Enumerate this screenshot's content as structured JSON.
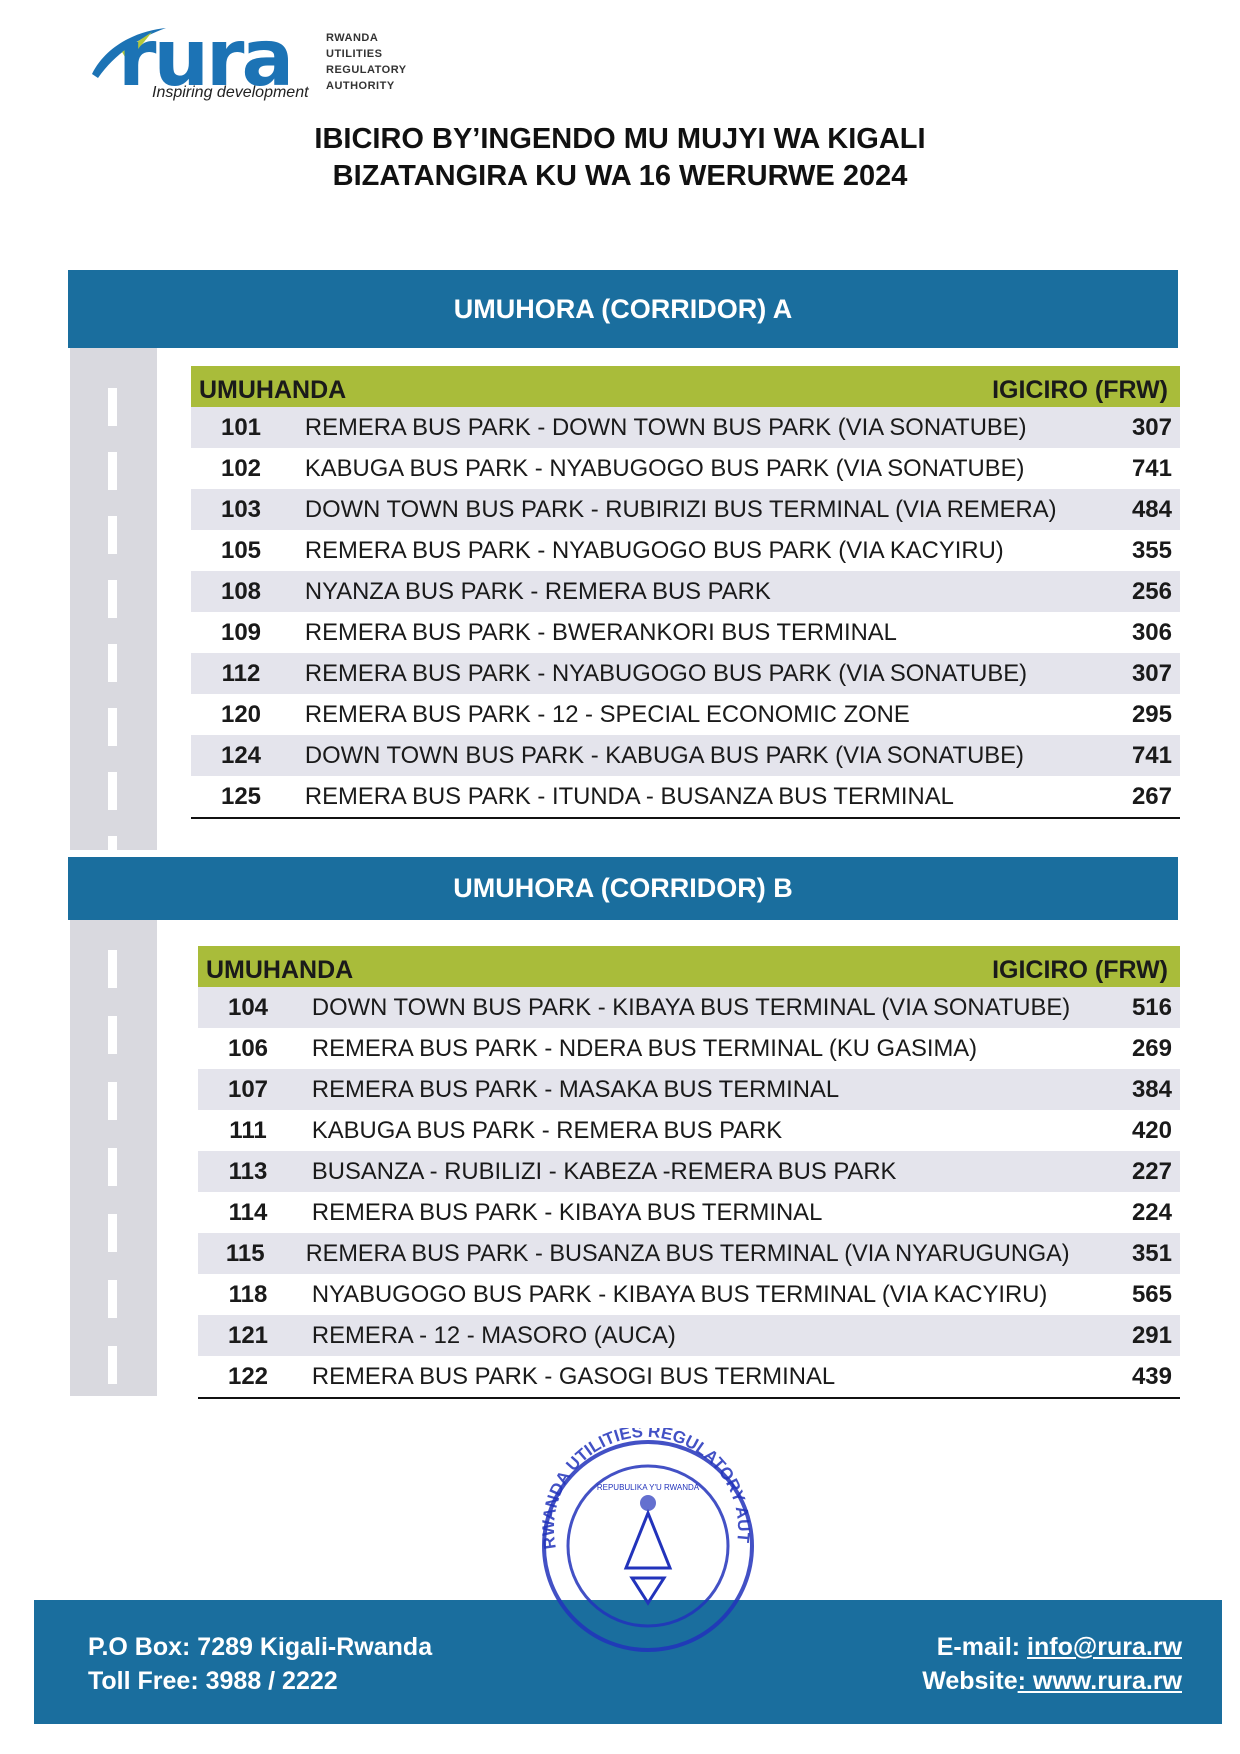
{
  "header": {
    "logo_text": "rura",
    "logo_tagline": "Inspiring development",
    "authority_lines": [
      "RWANDA",
      "UTILITIES",
      "REGULATORY",
      "AUTHORITY"
    ],
    "title_line1": "IBICIRO BY’INGENDO MU MUJYI WA KIGALI",
    "title_line2": "BIZATANGIRA KU WA 16 WERURWE 2024"
  },
  "colors": {
    "band": "#1a6e9e",
    "header_green": "#a9bc3a",
    "row_shade": "#e4e4ec",
    "road": "#d9d9df"
  },
  "corridors": [
    {
      "title": "UMUHORA (CORRIDOR) A",
      "col_route": "UMUHANDA",
      "col_price": "IGICIRO (FRW)",
      "rows": [
        {
          "num": "101",
          "route": "REMERA BUS PARK - DOWN TOWN BUS PARK (VIA SONATUBE)",
          "price": "307"
        },
        {
          "num": "102",
          "route": "KABUGA BUS PARK - NYABUGOGO BUS PARK (VIA SONATUBE)",
          "price": "741"
        },
        {
          "num": "103",
          "route": "DOWN TOWN BUS PARK - RUBIRIZI BUS TERMINAL (VIA REMERA)",
          "price": "484"
        },
        {
          "num": "105",
          "route": "REMERA BUS PARK - NYABUGOGO BUS PARK (VIA KACYIRU)",
          "price": "355"
        },
        {
          "num": "108",
          "route": "NYANZA BUS PARK - REMERA BUS PARK",
          "price": "256"
        },
        {
          "num": "109",
          "route": "REMERA BUS PARK - BWERANKORI BUS TERMINAL",
          "price": "306"
        },
        {
          "num": "112",
          "route": "REMERA BUS PARK - NYABUGOGO BUS PARK (VIA SONATUBE)",
          "price": "307"
        },
        {
          "num": "120",
          "route": "REMERA BUS PARK - 12 - SPECIAL ECONOMIC ZONE",
          "price": "295"
        },
        {
          "num": "124",
          "route": "DOWN TOWN BUS PARK - KABUGA BUS PARK (VIA SONATUBE)",
          "price": "741"
        },
        {
          "num": "125",
          "route": "REMERA BUS PARK - ITUNDA - BUSANZA BUS TERMINAL",
          "price": "267"
        }
      ]
    },
    {
      "title": "UMUHORA (CORRIDOR) B",
      "col_route": "UMUHANDA",
      "col_price": "IGICIRO (FRW)",
      "rows": [
        {
          "num": "104",
          "route": "DOWN TOWN BUS PARK - KIBAYA BUS TERMINAL (VIA SONATUBE)",
          "price": "516"
        },
        {
          "num": "106",
          "route": "REMERA BUS PARK - NDERA BUS TERMINAL (KU GASIMA)",
          "price": "269"
        },
        {
          "num": "107",
          "route": "REMERA BUS PARK - MASAKA BUS TERMINAL",
          "price": "384"
        },
        {
          "num": "111",
          "route": "KABUGA BUS PARK - REMERA BUS PARK",
          "price": "420"
        },
        {
          "num": "113",
          "route": "BUSANZA - RUBILIZI - KABEZA -REMERA BUS PARK",
          "price": "227"
        },
        {
          "num": "114",
          "route": "REMERA BUS PARK - KIBAYA BUS TERMINAL",
          "price": "224"
        },
        {
          "num": "115",
          "route": "REMERA BUS PARK - BUSANZA BUS TERMINAL (VIA NYARUGUNGA)",
          "price": "351"
        },
        {
          "num": "118",
          "route": "NYABUGOGO BUS PARK - KIBAYA BUS TERMINAL (VIA KACYIRU)",
          "price": "565"
        },
        {
          "num": "121",
          "route": "REMERA - 12 - MASORO (AUCA)",
          "price": "291"
        },
        {
          "num": "122",
          "route": "REMERA BUS PARK - GASOGI BUS TERMINAL",
          "price": "439"
        }
      ]
    }
  ],
  "stamp": {
    "outer_text": "RWANDA UTILITIES REGULATORY AUTHORITY",
    "inner_text": "REPUBULIKA Y'U RWANDA"
  },
  "footer": {
    "po_box": "P.O Box: 7289 Kigali-Rwanda",
    "toll_free": "Toll Free: 3988 / 2222",
    "email_label": "E-mail: ",
    "email": "info@rura.rw",
    "website_label": "Website",
    "website": ": www.rura.rw"
  }
}
